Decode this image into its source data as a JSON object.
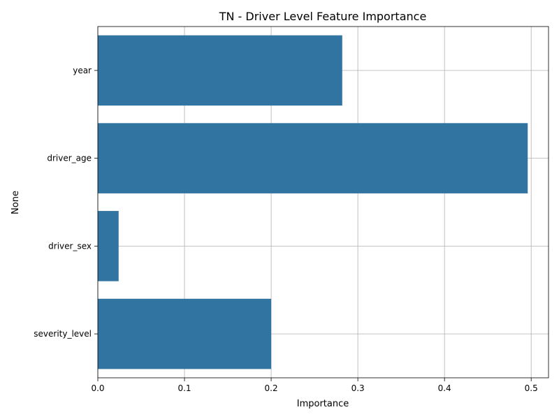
{
  "chart_data": {
    "type": "bar",
    "orientation": "horizontal",
    "title": "TN - Driver Level Feature Importance",
    "xlabel": "Importance",
    "ylabel": "None",
    "categories": [
      "year",
      "driver_age",
      "driver_sex",
      "severity_level"
    ],
    "values": [
      0.282,
      0.496,
      0.024,
      0.2
    ],
    "xlim": [
      0,
      0.52
    ],
    "xticks": [
      0.0,
      0.1,
      0.2,
      0.3,
      0.4,
      0.5
    ],
    "xtick_labels": [
      "0.0",
      "0.1",
      "0.2",
      "0.3",
      "0.4",
      "0.5"
    ],
    "grid": true,
    "bar_color": "#3274a1"
  }
}
